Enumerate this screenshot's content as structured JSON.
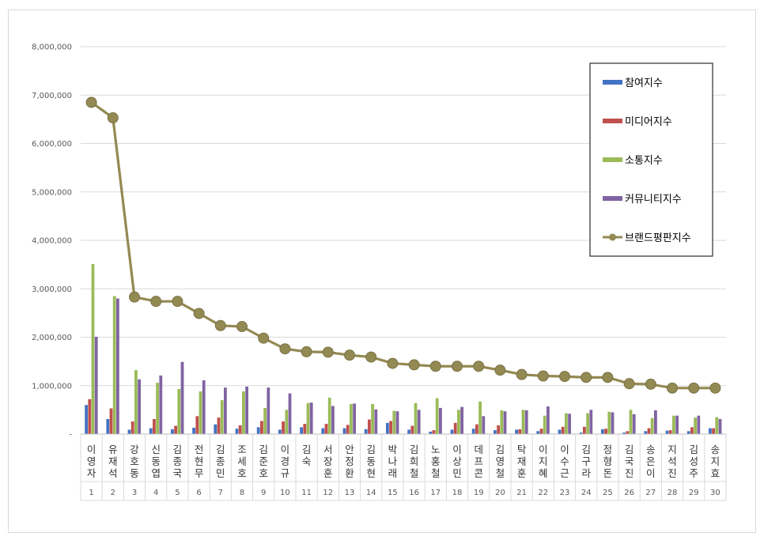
{
  "chart_data": {
    "type": "bar",
    "title": "",
    "xlabel": "",
    "ylabel": "",
    "ylim": [
      0,
      8000000
    ],
    "y_ticks": [
      "-",
      "1,000,000",
      "2,000,000",
      "3,000,000",
      "4,000,000",
      "5,000,000",
      "6,000,000",
      "7,000,000",
      "8,000,000"
    ],
    "grid": true,
    "legend_position": "top-right",
    "categories": [
      "이영자",
      "유재석",
      "강호동",
      "신동엽",
      "김종국",
      "전현무",
      "김종민",
      "조세호",
      "김준호",
      "이경규",
      "김숙",
      "서장훈",
      "안정환",
      "김동현",
      "박나래",
      "김희철",
      "노홍철",
      "이상민",
      "데프콘",
      "김영철",
      "탁재훈",
      "이지혜",
      "이수근",
      "김구라",
      "정형돈",
      "김국진",
      "송은이",
      "지석진",
      "김성주",
      "송지효"
    ],
    "ranks": [
      "1",
      "2",
      "3",
      "4",
      "5",
      "6",
      "7",
      "8",
      "9",
      "10",
      "11",
      "12",
      "13",
      "14",
      "15",
      "16",
      "17",
      "18",
      "19",
      "20",
      "21",
      "22",
      "23",
      "24",
      "25",
      "26",
      "27",
      "28",
      "29",
      "30"
    ],
    "series": [
      {
        "name": "참여지수",
        "kind": "bar",
        "color": "#4472c4",
        "values": [
          600000,
          310000,
          90000,
          120000,
          100000,
          130000,
          200000,
          110000,
          140000,
          90000,
          140000,
          120000,
          120000,
          100000,
          230000,
          90000,
          50000,
          90000,
          110000,
          80000,
          90000,
          60000,
          90000,
          30000,
          100000,
          30000,
          60000,
          70000,
          60000,
          120000
        ]
      },
      {
        "name": "미디어지수",
        "kind": "bar",
        "color": "#c0504d",
        "values": [
          720000,
          530000,
          260000,
          310000,
          170000,
          370000,
          340000,
          180000,
          270000,
          260000,
          210000,
          210000,
          190000,
          300000,
          270000,
          170000,
          80000,
          230000,
          200000,
          180000,
          100000,
          110000,
          150000,
          150000,
          110000,
          60000,
          120000,
          80000,
          140000,
          120000
        ]
      },
      {
        "name": "소통지수",
        "kind": "bar",
        "color": "#9bbb59",
        "values": [
          3510000,
          2850000,
          1320000,
          1060000,
          930000,
          880000,
          700000,
          880000,
          540000,
          500000,
          640000,
          750000,
          620000,
          620000,
          480000,
          640000,
          740000,
          500000,
          670000,
          490000,
          500000,
          380000,
          430000,
          430000,
          460000,
          500000,
          330000,
          380000,
          340000,
          350000
        ]
      },
      {
        "name": "커뮤니티지수",
        "kind": "bar",
        "color": "#8064a2",
        "values": [
          2010000,
          2800000,
          1130000,
          1210000,
          1490000,
          1110000,
          960000,
          980000,
          960000,
          840000,
          650000,
          580000,
          630000,
          510000,
          470000,
          500000,
          540000,
          560000,
          370000,
          470000,
          490000,
          570000,
          420000,
          500000,
          450000,
          410000,
          490000,
          380000,
          380000,
          310000
        ]
      },
      {
        "name": "브랜드평판지수",
        "kind": "line",
        "color": "#938953",
        "values": [
          6850000,
          6530000,
          2830000,
          2740000,
          2740000,
          2490000,
          2240000,
          2220000,
          1980000,
          1760000,
          1700000,
          1690000,
          1630000,
          1590000,
          1460000,
          1430000,
          1400000,
          1400000,
          1400000,
          1320000,
          1230000,
          1200000,
          1190000,
          1170000,
          1170000,
          1040000,
          1030000,
          950000,
          950000,
          950000
        ]
      }
    ]
  }
}
